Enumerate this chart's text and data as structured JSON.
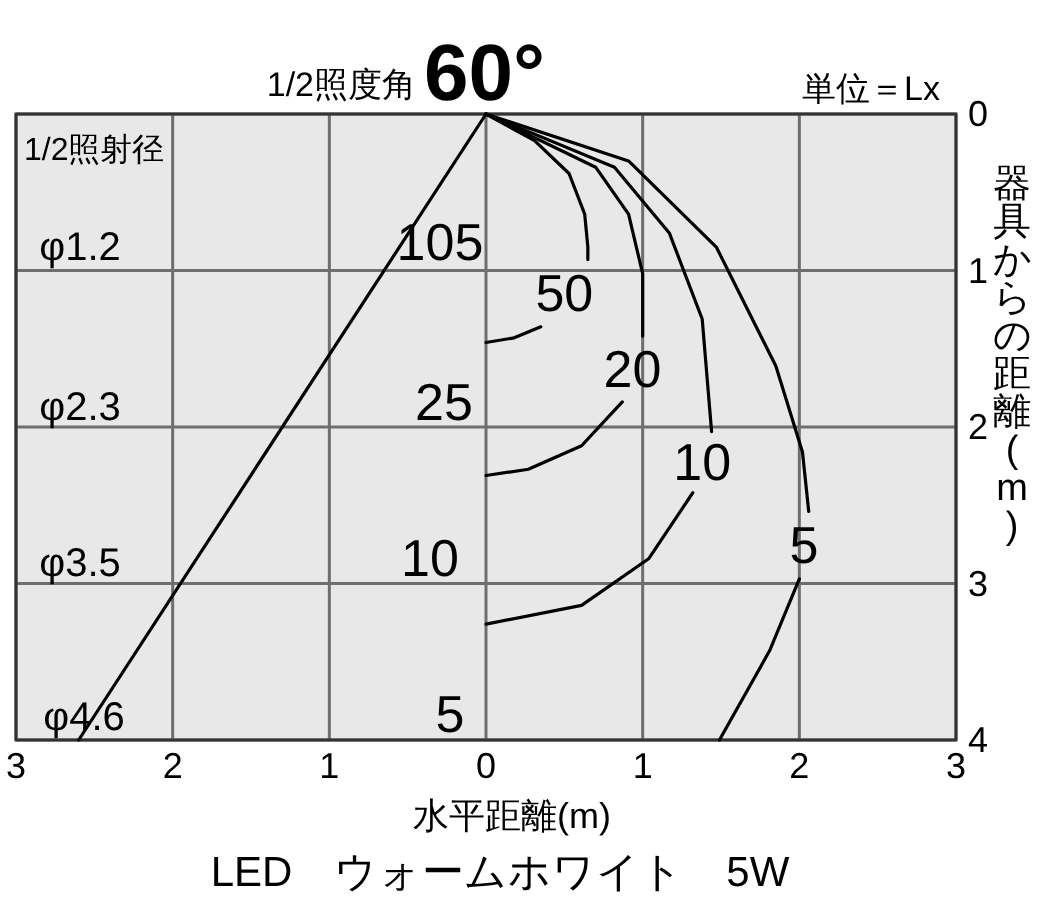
{
  "chart_data": {
    "type": "line",
    "title": "1/2照度角",
    "subtitle": "60°",
    "xlabel": "水平距離(m)",
    "ylabel": "器具からの距離(m)",
    "xlim": [
      -3,
      3
    ],
    "xticks": [
      {
        "value": -3,
        "label": "3"
      },
      {
        "value": -2,
        "label": "2"
      },
      {
        "value": -1,
        "label": "1"
      },
      0,
      1,
      2,
      3
    ],
    "ylim": [
      4,
      0
    ],
    "yticks": [
      0,
      1,
      2,
      3,
      4
    ],
    "grid": true,
    "legend": false,
    "marker": "none",
    "line_style": "solid",
    "annotations": [
      "1/2照射径",
      "単位＝Lx",
      "LED　ウォームホワイト　5W",
      "φ1.2",
      "φ2.3",
      "φ3.5",
      "φ4.6",
      "105",
      "25",
      "10",
      "5"
    ],
    "series": [
      {
        "color": "#000000",
        "x": [
          0,
          -2.6
        ],
        "values": [
          0,
          4
        ]
      },
      {
        "name": "50",
        "color": "#000000",
        "x": [
          0,
          0.31,
          0.53,
          0.63,
          0.65,
          0.65,
          null,
          0.35,
          0.18,
          0
        ],
        "values": [
          0,
          0.17,
          0.38,
          0.64,
          0.85,
          0.93,
          null,
          1.36,
          1.43,
          1.46
        ]
      },
      {
        "name": "20",
        "color": "#000000",
        "x": [
          0,
          0.7,
          0.91,
          1.0,
          1.0,
          null,
          0.87,
          0.61,
          0.27,
          0
        ],
        "values": [
          0,
          0.34,
          0.64,
          1.02,
          1.42,
          null,
          1.84,
          2.12,
          2.27,
          2.31
        ]
      },
      {
        "name": "10",
        "color": "#000000",
        "x": [
          0,
          0.82,
          1.17,
          1.38,
          1.44,
          null,
          1.32,
          1.04,
          0.61,
          0
        ],
        "values": [
          0,
          0.34,
          0.76,
          1.31,
          2.03,
          null,
          2.42,
          2.84,
          3.14,
          3.26
        ]
      },
      {
        "name": "5",
        "color": "#000000",
        "x": [
          0,
          0.91,
          1.47,
          1.85,
          2.02,
          2.06,
          null,
          2.0,
          1.81,
          1.49
        ],
        "values": [
          0,
          0.3,
          0.85,
          1.61,
          2.16,
          2.54,
          null,
          2.97,
          3.43,
          4.0
        ]
      }
    ]
  }
}
